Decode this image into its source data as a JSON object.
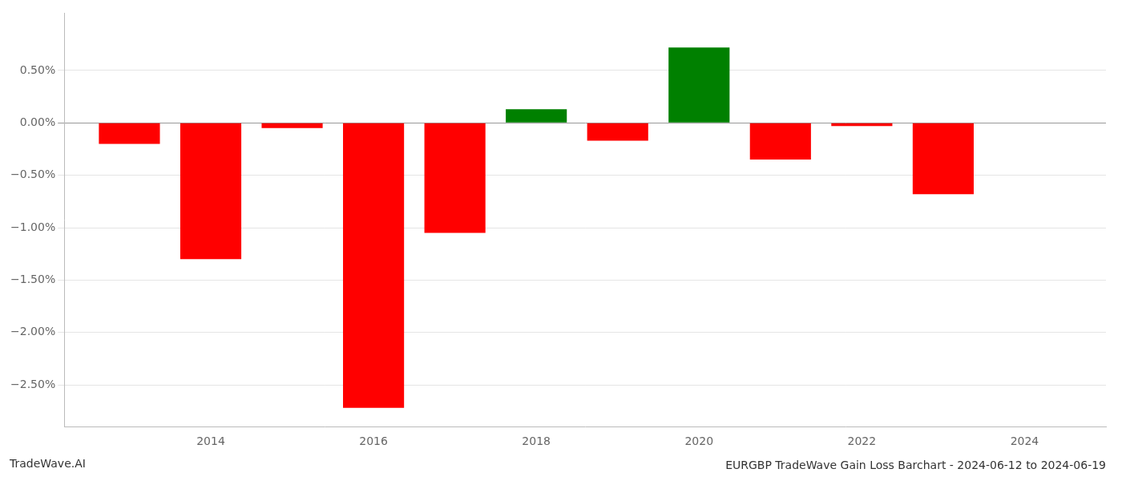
{
  "chart_data": {
    "type": "bar",
    "title": "EURGBP TradeWave Gain Loss Barchart - 2024-06-12 to 2024-06-19",
    "annotations": [
      {
        "text": "TradeWave.AI"
      }
    ],
    "x": [
      2013,
      2014,
      2015,
      2016,
      2017,
      2018,
      2019,
      2020,
      2021,
      2022,
      2023
    ],
    "values": [
      -0.2,
      -1.3,
      -0.05,
      -2.72,
      -1.05,
      0.13,
      -0.17,
      0.72,
      -0.35,
      -0.03,
      -0.68
    ],
    "colors": [
      "#ff0000",
      "#ff0000",
      "#ff0000",
      "#ff0000",
      "#ff0000",
      "#008000",
      "#ff0000",
      "#008000",
      "#ff0000",
      "#ff0000",
      "#ff0000"
    ],
    "xlim": [
      2012.2,
      2025.0
    ],
    "xticks": [
      2014,
      2016,
      2018,
      2020,
      2022,
      2024
    ],
    "ylim": [
      -2.9,
      1.05
    ],
    "yticks": [
      {
        "value": 0.5,
        "label": "0.50%"
      },
      {
        "value": 0.0,
        "label": "0.00%"
      },
      {
        "value": -0.5,
        "label": "−0.50%"
      },
      {
        "value": -1.0,
        "label": "−1.00%"
      },
      {
        "value": -1.5,
        "label": "−1.50%"
      },
      {
        "value": -2.0,
        "label": "−2.00%"
      },
      {
        "value": -2.5,
        "label": "−2.50%"
      }
    ],
    "grid": true
  }
}
